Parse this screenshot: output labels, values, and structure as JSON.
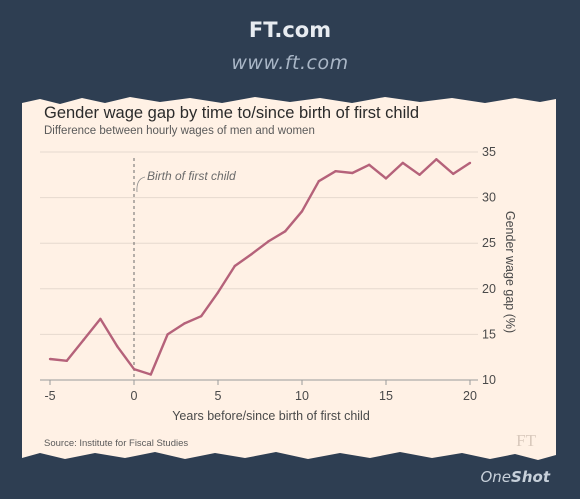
{
  "header": {
    "site": "FT.com",
    "url": "www.ft.com"
  },
  "footer": {
    "source": "Source: Institute for Fiscal Studies",
    "ft_logo": "FT",
    "oneshot_a": "One",
    "oneshot_b": "Shot"
  },
  "colors": {
    "background": "#2e3e52",
    "paper": "#fff1e5",
    "line": "#b5627a",
    "grid": "#e6d9ce",
    "text": "#4a4a4a"
  },
  "chart_data": {
    "type": "line",
    "title": "Gender wage gap by time to/since birth of first child",
    "subtitle": "Difference between hourly wages of men and women",
    "xlabel": "Years before/since birth of first child",
    "ylabel": "Gender wage gap (%)",
    "xlim": [
      -5,
      20
    ],
    "ylim": [
      10,
      35
    ],
    "xticks": [
      -5,
      0,
      5,
      10,
      15,
      20
    ],
    "yticks": [
      10,
      15,
      20,
      25,
      30,
      35
    ],
    "y_axis_side": "right",
    "grid": true,
    "annotation": {
      "x": 0,
      "label": "Birth of first child"
    },
    "series": [
      {
        "x": [
          -5,
          -4,
          -3,
          -2,
          -1,
          0,
          1,
          2,
          3,
          4,
          5,
          6,
          7,
          8,
          9,
          10,
          11,
          12,
          13,
          14,
          15,
          16,
          17,
          18,
          19,
          20
        ],
        "y": [
          12.3,
          12.1,
          14.4,
          16.7,
          13.7,
          11.2,
          10.6,
          15.0,
          16.2,
          17.0,
          19.6,
          22.5,
          23.8,
          25.2,
          26.3,
          28.5,
          31.8,
          32.9,
          32.7,
          33.6,
          32.1,
          33.8,
          32.5,
          34.2,
          32.6,
          33.8
        ]
      }
    ]
  }
}
